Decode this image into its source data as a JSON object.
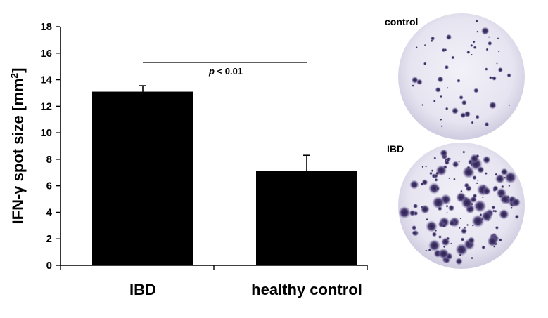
{
  "chart_data": {
    "type": "bar",
    "categories": [
      "IBD",
      "healthy control"
    ],
    "values": [
      13.1,
      7.1
    ],
    "error": [
      0.45,
      1.2
    ],
    "ylabel_main": "IFN-γ spot size [mm",
    "ylabel_sup": "2",
    "ylabel_end": "]",
    "xlabel": "",
    "ylim": [
      0,
      18
    ],
    "yticks": [
      0,
      2,
      4,
      6,
      8,
      10,
      12,
      14,
      16,
      18
    ],
    "annotation": {
      "p_symbol": "p",
      "p_rest": " < 0.01"
    },
    "bar_color": "#000000",
    "grid": false
  },
  "wells": [
    {
      "label": "control",
      "spot_density": "low"
    },
    {
      "label": "IBD",
      "spot_density": "high"
    }
  ]
}
